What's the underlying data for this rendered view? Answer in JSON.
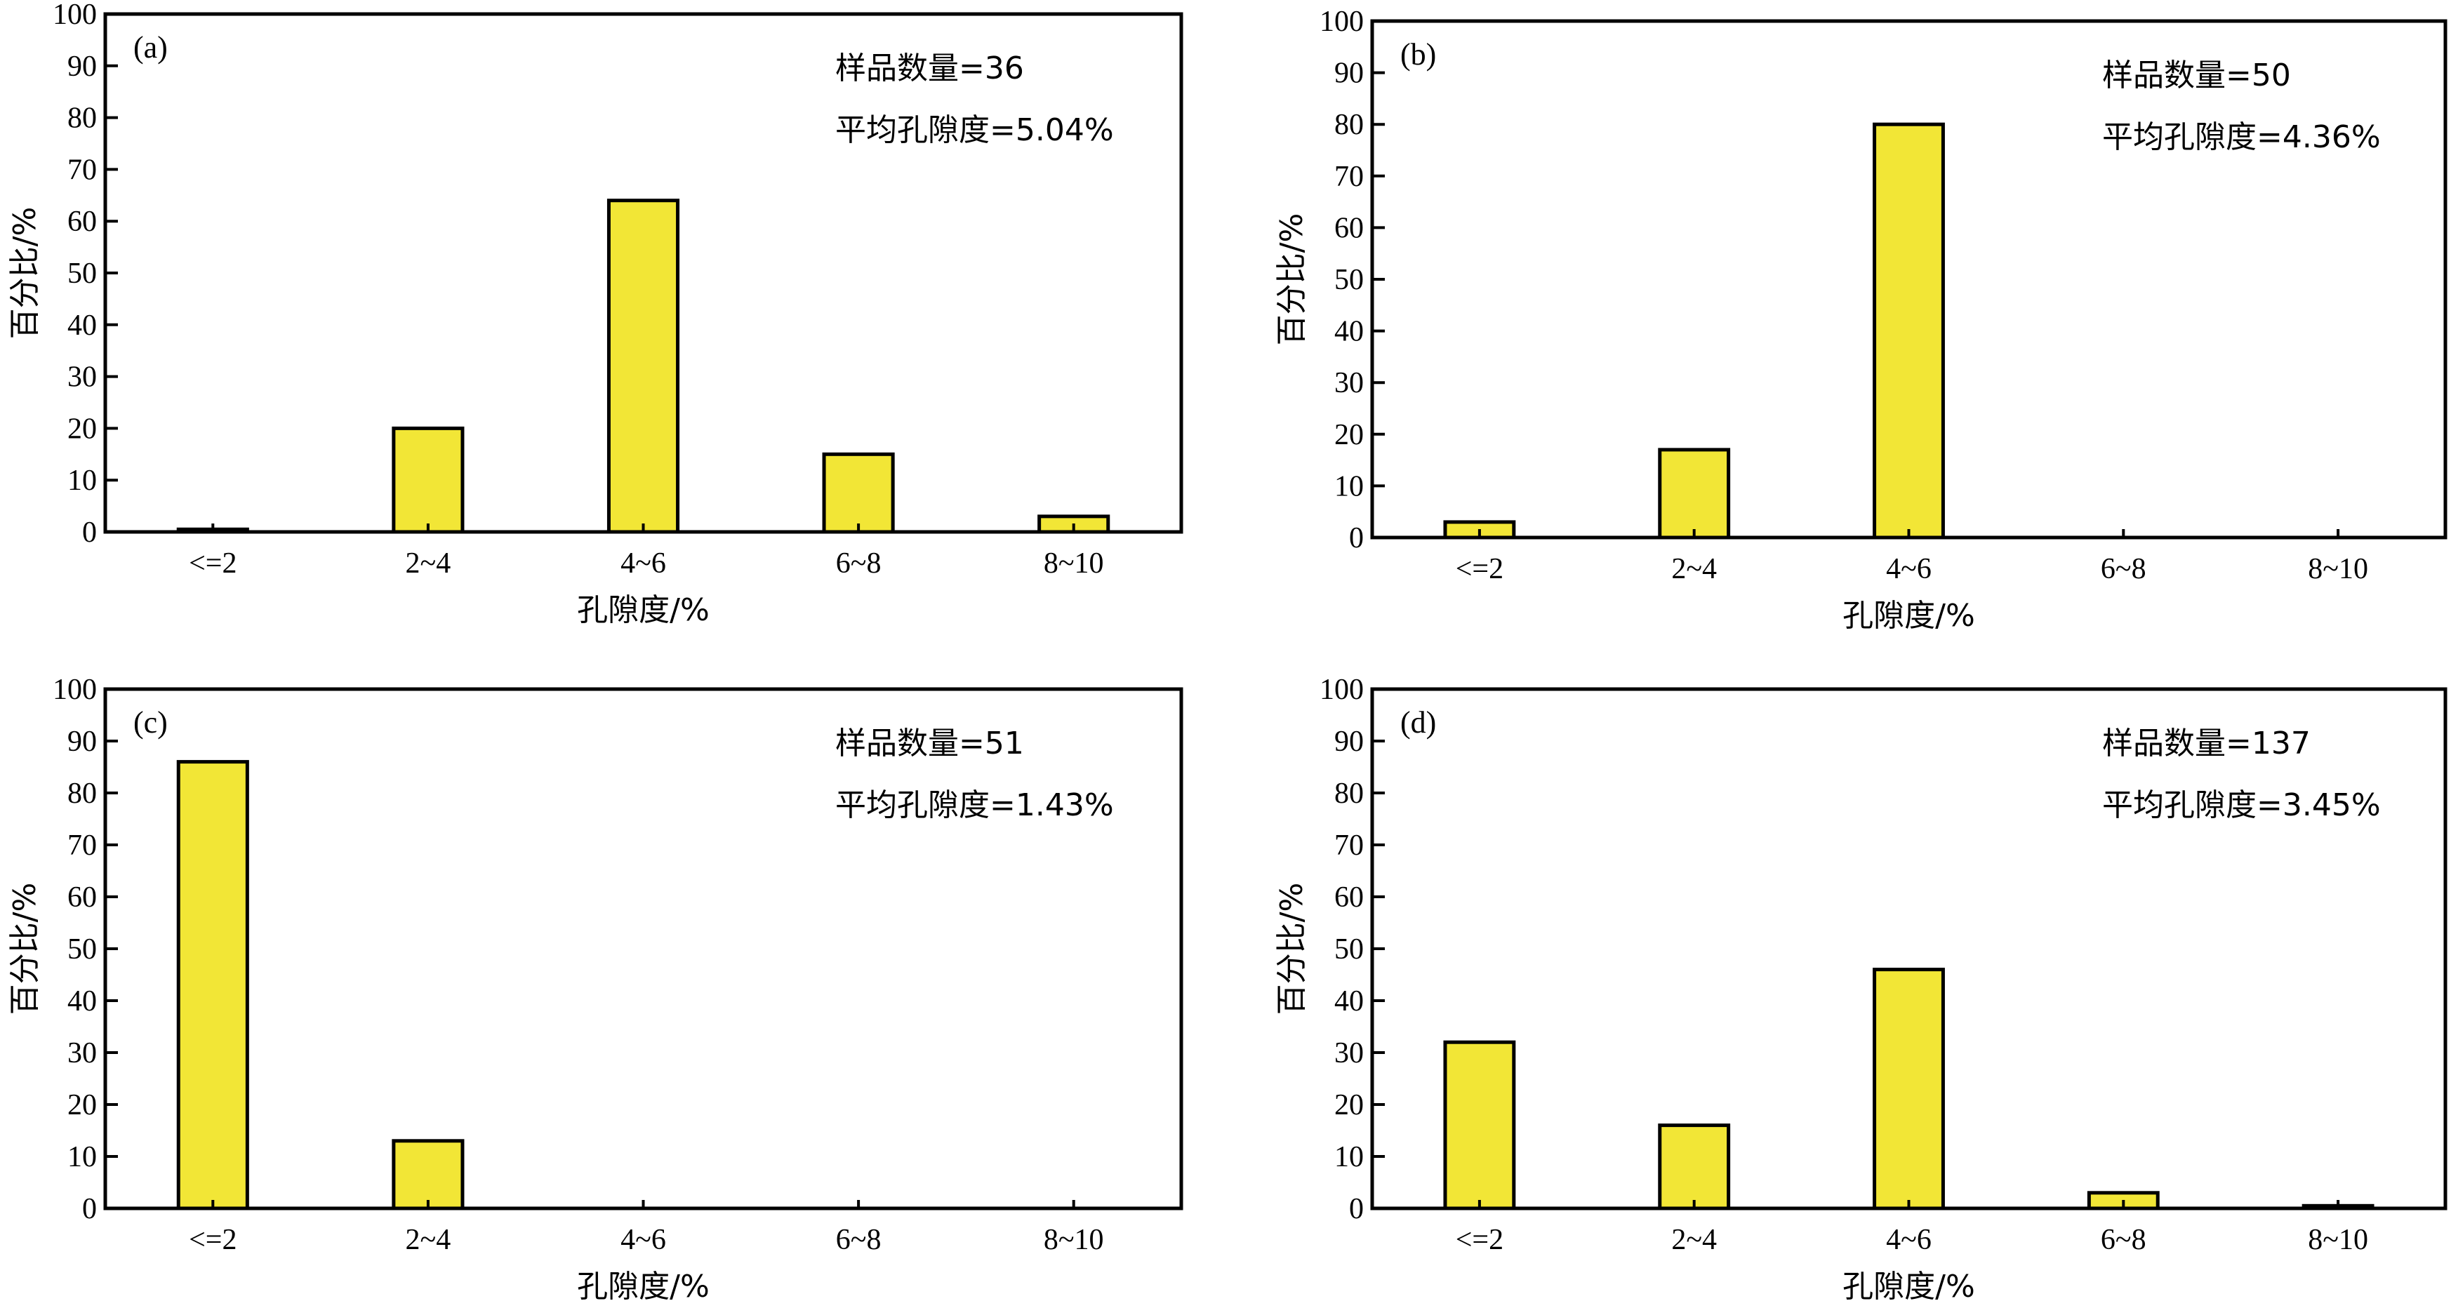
{
  "colors": {
    "bar_fill": "#f2e636",
    "bar_stroke": "#000000",
    "axis": "#000000",
    "background": "#ffffff"
  },
  "chart_data": [
    {
      "type": "bar",
      "panel": "(a)",
      "categories": [
        "<=2",
        "2~4",
        "4~6",
        "6~8",
        "8~10"
      ],
      "values": [
        0.5,
        20,
        64,
        15,
        3
      ],
      "xlabel": "孔隙度/%",
      "ylabel": "百分比/%",
      "ylim": [
        0,
        100
      ],
      "yticks": [
        0,
        10,
        20,
        30,
        40,
        50,
        60,
        70,
        80,
        90,
        100
      ],
      "annotations": [
        "样品数量=36",
        "平均孔隙度=5.04%"
      ],
      "grid": false
    },
    {
      "type": "bar",
      "panel": "(b)",
      "categories": [
        "<=2",
        "2~4",
        "4~6",
        "6~8",
        "8~10"
      ],
      "values": [
        3,
        17,
        80,
        0,
        0
      ],
      "xlabel": "孔隙度/%",
      "ylabel": "百分比/%",
      "ylim": [
        0,
        100
      ],
      "yticks": [
        0,
        10,
        20,
        30,
        40,
        50,
        60,
        70,
        80,
        90,
        100
      ],
      "annotations": [
        "样品数量=50",
        "平均孔隙度=4.36%"
      ],
      "grid": false
    },
    {
      "type": "bar",
      "panel": "(c)",
      "categories": [
        "<=2",
        "2~4",
        "4~6",
        "6~8",
        "8~10"
      ],
      "values": [
        86,
        13,
        0,
        0,
        0
      ],
      "xlabel": "孔隙度/%",
      "ylabel": "百分比/%",
      "ylim": [
        0,
        100
      ],
      "yticks": [
        0,
        10,
        20,
        30,
        40,
        50,
        60,
        70,
        80,
        90,
        100
      ],
      "annotations": [
        "样品数量=51",
        "平均孔隙度=1.43%"
      ],
      "grid": false
    },
    {
      "type": "bar",
      "panel": "(d)",
      "categories": [
        "<=2",
        "2~4",
        "4~6",
        "6~8",
        "8~10"
      ],
      "values": [
        32,
        16,
        46,
        3,
        0.5
      ],
      "xlabel": "孔隙度/%",
      "ylabel": "百分比/%",
      "ylim": [
        0,
        100
      ],
      "yticks": [
        0,
        10,
        20,
        30,
        40,
        50,
        60,
        70,
        80,
        90,
        100
      ],
      "annotations": [
        "样品数量=137",
        "平均孔隙度=3.45%"
      ],
      "grid": false
    }
  ]
}
